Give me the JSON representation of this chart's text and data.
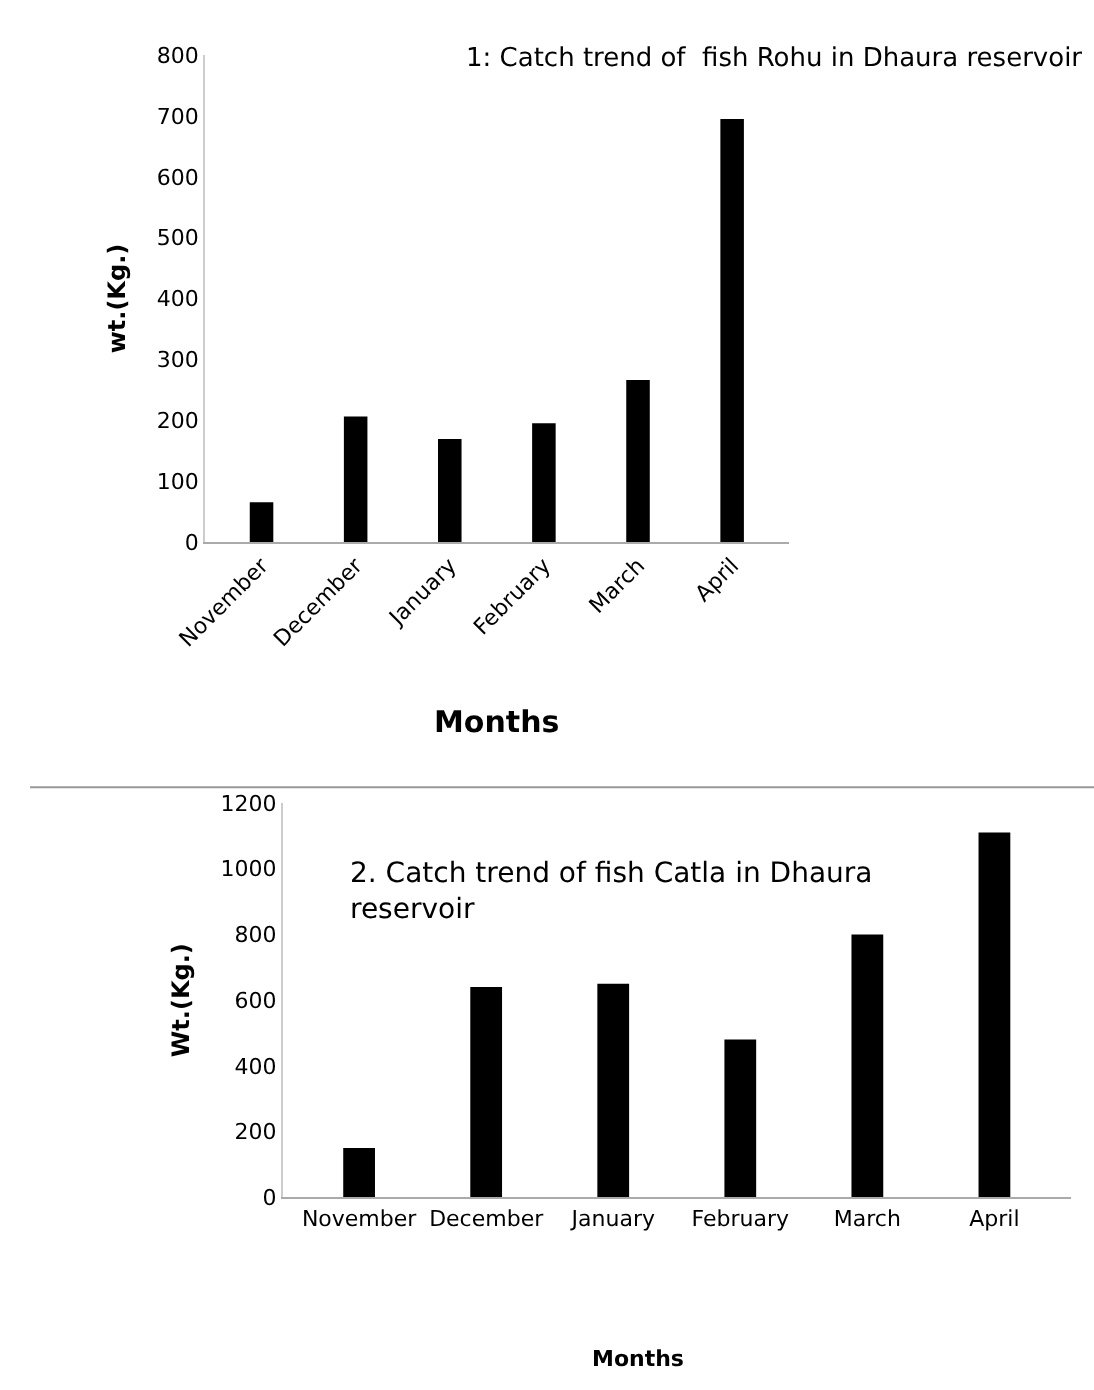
{
  "chart_data": [
    {
      "type": "bar",
      "title": "1: Catch trend of  fish Rohu in Dhaura reservoir",
      "xlabel": "Months",
      "ylabel": "wt.(Kg.)",
      "categories": [
        "November",
        "December",
        "January",
        "February",
        "March",
        "April"
      ],
      "values": [
        65,
        206,
        169,
        195,
        266,
        695
      ],
      "color": "#000000",
      "ylim": [
        0,
        800
      ],
      "yticks": [
        0,
        100,
        200,
        300,
        400,
        500,
        600,
        700,
        800
      ],
      "grid": false
    },
    {
      "type": "bar",
      "title": "2. Catch trend of fish Catla in Dhaura reservoir",
      "xlabel": "Months",
      "ylabel": "Wt.(Kg.)",
      "categories": [
        "November",
        "December",
        "January",
        "February",
        "March",
        "April"
      ],
      "values": [
        150,
        640,
        650,
        480,
        800,
        1110
      ],
      "color": "#000000",
      "ylim": [
        0,
        1200
      ],
      "yticks": [
        0,
        200,
        400,
        600,
        800,
        1000,
        1200
      ],
      "grid": false
    }
  ]
}
